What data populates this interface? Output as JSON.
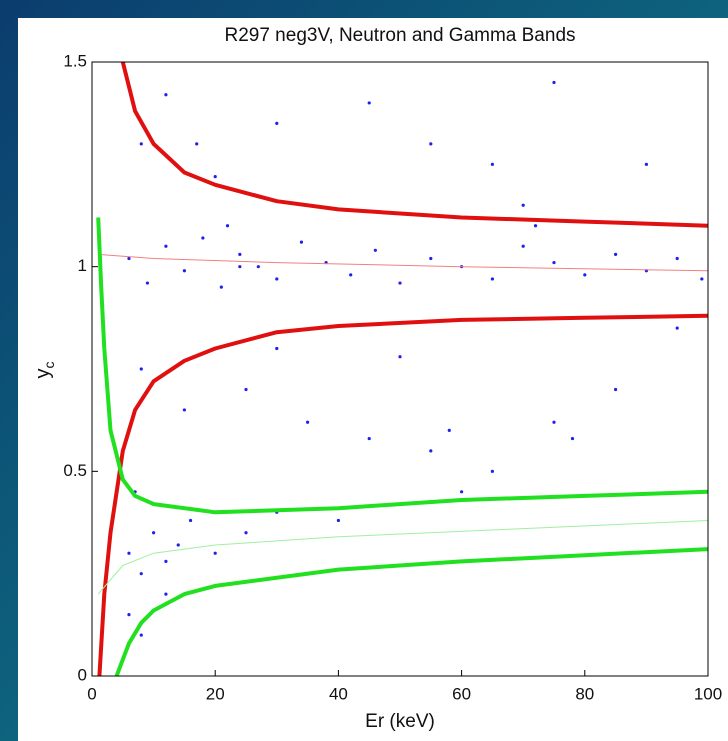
{
  "chart_data": {
    "type": "scatter",
    "title": "R297 neg3V, Neutron and Gamma Bands",
    "xlabel": "Er (keV)",
    "ylabel": {
      "text": "y",
      "subscript": "c"
    },
    "xlim": [
      0,
      100
    ],
    "ylim": [
      0,
      1.5
    ],
    "xticks": [
      0,
      20,
      40,
      60,
      80,
      100
    ],
    "yticks": [
      0,
      0.5,
      1,
      1.5
    ],
    "points": {
      "color": "#2020ee",
      "x": [
        6,
        9,
        12,
        15,
        18,
        21,
        24,
        27,
        30,
        34,
        38,
        42,
        46,
        50,
        55,
        60,
        65,
        70,
        75,
        80,
        85,
        90,
        95,
        99,
        8,
        12,
        30,
        45,
        55,
        75,
        90,
        17,
        20,
        22,
        24,
        70,
        72,
        65,
        8,
        15,
        25,
        35,
        45,
        55,
        58,
        75,
        78,
        65,
        30,
        50,
        85,
        95,
        6,
        8,
        10,
        12,
        14,
        16,
        20,
        25,
        30,
        40,
        50,
        60,
        6,
        8,
        12,
        7
      ],
      "values": [
        1.02,
        0.96,
        1.05,
        0.99,
        1.07,
        0.95,
        1.03,
        1.0,
        0.97,
        1.06,
        1.01,
        0.98,
        1.04,
        0.96,
        1.02,
        1.0,
        0.97,
        1.05,
        1.01,
        0.98,
        1.03,
        0.99,
        1.02,
        0.97,
        1.3,
        1.42,
        1.35,
        1.4,
        1.3,
        1.45,
        1.25,
        1.3,
        1.22,
        1.1,
        1.0,
        1.15,
        1.1,
        1.25,
        0.75,
        0.65,
        0.7,
        0.62,
        0.58,
        0.55,
        0.6,
        0.62,
        0.58,
        0.5,
        0.8,
        0.78,
        0.7,
        0.85,
        0.3,
        0.25,
        0.35,
        0.28,
        0.32,
        0.38,
        0.3,
        0.35,
        0.4,
        0.38,
        0.42,
        0.45,
        0.15,
        0.1,
        0.2,
        0.45
      ]
    },
    "curves": [
      {
        "color": "#e01010",
        "width": 4,
        "x": [
          5,
          7,
          10,
          15,
          20,
          30,
          40,
          60,
          80,
          100
        ],
        "values": [
          1.5,
          1.38,
          1.3,
          1.23,
          1.2,
          1.16,
          1.14,
          1.12,
          1.11,
          1.1
        ]
      },
      {
        "color": "#e01010",
        "width": 4,
        "x": [
          1.2,
          2,
          3,
          5,
          7,
          10,
          15,
          20,
          30,
          40,
          60,
          80,
          100
        ],
        "values": [
          0,
          0.2,
          0.35,
          0.55,
          0.65,
          0.72,
          0.77,
          0.8,
          0.84,
          0.855,
          0.87,
          0.875,
          0.88
        ]
      },
      {
        "color": "#f08080",
        "width": 1,
        "x": [
          1,
          10,
          30,
          60,
          100
        ],
        "values": [
          1.03,
          1.02,
          1.01,
          1.0,
          0.99
        ]
      },
      {
        "color": "#20e020",
        "width": 4,
        "x": [
          1,
          1.5,
          2,
          3,
          5,
          7,
          10,
          20,
          40,
          60,
          80,
          100
        ],
        "values": [
          1.12,
          0.95,
          0.8,
          0.6,
          0.48,
          0.44,
          0.42,
          0.4,
          0.41,
          0.43,
          0.44,
          0.45
        ]
      },
      {
        "color": "#20e020",
        "width": 4,
        "x": [
          4,
          5,
          6,
          8,
          10,
          15,
          20,
          40,
          60,
          80,
          100
        ],
        "values": [
          0,
          0.04,
          0.08,
          0.13,
          0.16,
          0.2,
          0.22,
          0.26,
          0.28,
          0.295,
          0.31
        ]
      },
      {
        "color": "#a0f0a0",
        "width": 1,
        "x": [
          1,
          5,
          10,
          20,
          40,
          70,
          100
        ],
        "values": [
          0.2,
          0.27,
          0.3,
          0.32,
          0.34,
          0.36,
          0.38
        ]
      }
    ]
  }
}
